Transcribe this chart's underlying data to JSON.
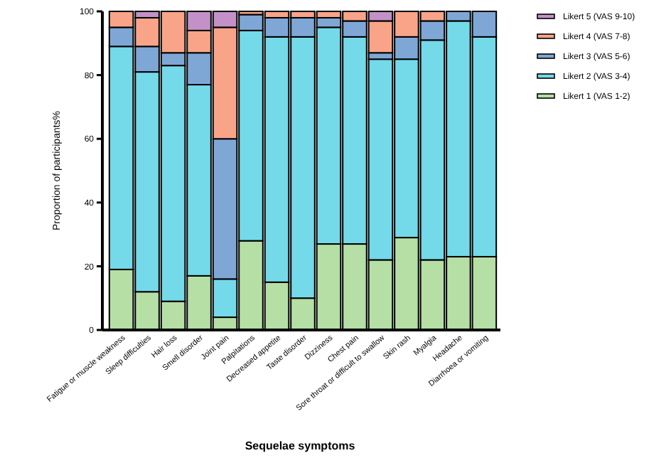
{
  "chart_data": {
    "type": "bar",
    "stacked": true,
    "xlabel": "Sequelae symptoms",
    "ylabel": "Proportion of participants%",
    "categories": [
      "Fatigue or muscle weakness",
      "Sleep difficulties",
      "Hair loss",
      "Smell disorder",
      "Joint pain",
      "Palpitations",
      "Decreased appetite",
      "Taste disorder",
      "Dizziness",
      "Chest pain",
      "Sore throat or difficult to swallow",
      "Skin rash",
      "Myalgia",
      "Headache",
      "Diarrhoea or vomiting"
    ],
    "series": [
      {
        "name": "Likert 1 (VAS 1-2)",
        "color": "#b5dfa5",
        "values": [
          19,
          12,
          9,
          17,
          4,
          28,
          15,
          10,
          27,
          27,
          22,
          29,
          22,
          23,
          23
        ]
      },
      {
        "name": "Likert 2 (VAS 3-4)",
        "color": "#74d9e8",
        "values": [
          70,
          69,
          74,
          60,
          12,
          66,
          77,
          82,
          68,
          65,
          63,
          56,
          69,
          74,
          69
        ]
      },
      {
        "name": "Likert 3 (VAS 5-6)",
        "color": "#7fa7d6",
        "values": [
          6,
          8,
          4,
          10,
          44,
          5,
          6,
          6,
          3,
          5,
          2,
          7,
          6,
          3,
          8
        ]
      },
      {
        "name": "Likert 4 (VAS 7-8)",
        "color": "#f9a488",
        "values": [
          5,
          9,
          13,
          7,
          35,
          1,
          2,
          2,
          2,
          3,
          10,
          8,
          3,
          0,
          0
        ]
      },
      {
        "name": "Likert 5 (VAS 9-10)",
        "color": "#c391c7",
        "values": [
          0,
          2,
          0,
          6,
          5,
          0,
          0,
          0,
          0,
          0,
          3,
          0,
          0,
          0,
          0
        ]
      }
    ],
    "ylim": [
      0,
      100
    ],
    "yticks": [
      0,
      20,
      40,
      60,
      80,
      100
    ],
    "grid": false,
    "legend": "right"
  }
}
